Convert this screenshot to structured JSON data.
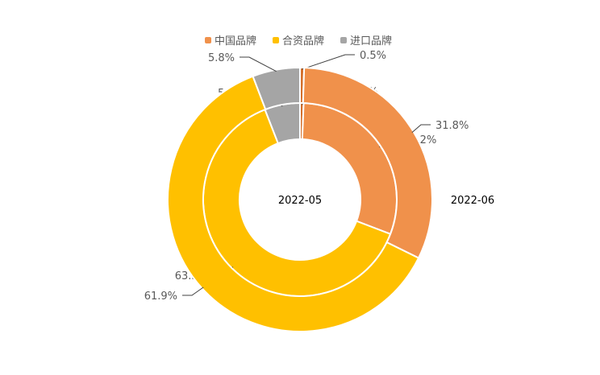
{
  "chart_data": {
    "type": "pie",
    "subtype": "nested-doughnut",
    "title": "",
    "legend": {
      "position": "top",
      "entries": [
        "中国品牌",
        "合资品牌",
        "进口品牌"
      ]
    },
    "categories": [
      "",
      "中国品牌",
      "合资品牌",
      "进口品牌"
    ],
    "colors": [
      "#D4702C",
      "#F0914B",
      "#FFC000",
      "#A5A5A5"
    ],
    "series": [
      {
        "name": "2022-05",
        "ring": "inner",
        "values": [
          0.6,
          30.2,
          63.3,
          5.9
        ],
        "labels": [
          "0.6%",
          "30.2%",
          "63.3%",
          "5.9%"
        ]
      },
      {
        "name": "2022-06",
        "ring": "outer",
        "values": [
          0.5,
          31.8,
          61.9,
          5.8
        ],
        "labels": [
          "0.5%",
          "31.8%",
          "61.9%",
          "5.8%"
        ]
      }
    ]
  }
}
